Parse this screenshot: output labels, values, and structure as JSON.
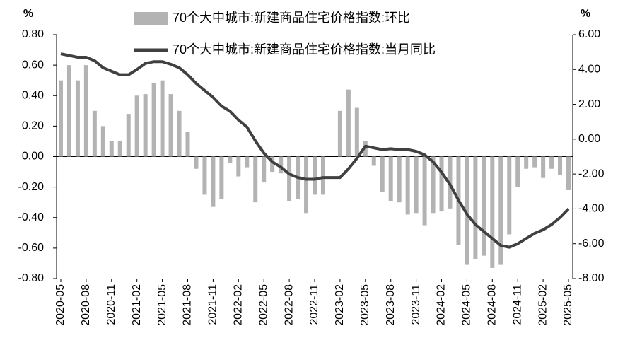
{
  "chart_data": {
    "type": "bar_line",
    "y_label": "%",
    "y2_label": "%",
    "categories": [
      "2020-05",
      null,
      null,
      "2020-08",
      null,
      null,
      "2020-11",
      null,
      null,
      "2021-02",
      null,
      null,
      "2021-05",
      null,
      null,
      "2021-08",
      null,
      null,
      "2021-11",
      null,
      null,
      "2022-02",
      null,
      null,
      "2022-05",
      null,
      null,
      "2022-08",
      null,
      null,
      "2022-11",
      null,
      null,
      "2023-02",
      null,
      null,
      "2023-05",
      null,
      null,
      "2023-08",
      null,
      null,
      "2023-11",
      null,
      null,
      "2024-02",
      null,
      null,
      "2024-05",
      null,
      null,
      "2024-08",
      null,
      null,
      "2024-11",
      null,
      null,
      "2025-02",
      null,
      null,
      "2025-05"
    ],
    "series": [
      {
        "name": "70个大中城市:新建商品住宅价格指数:环比",
        "type": "bar",
        "color": "#b3b3b3",
        "values": [
          0.5,
          0.6,
          0.5,
          0.6,
          0.3,
          0.2,
          0.1,
          0.1,
          0.28,
          0.4,
          0.41,
          0.48,
          0.5,
          0.41,
          0.3,
          0.16,
          -0.08,
          -0.25,
          -0.33,
          -0.28,
          -0.04,
          -0.13,
          -0.07,
          -0.3,
          -0.17,
          -0.1,
          -0.11,
          -0.29,
          -0.28,
          -0.37,
          -0.25,
          -0.25,
          0,
          0.3,
          0.44,
          0.32,
          0.1,
          -0.06,
          -0.23,
          -0.29,
          -0.3,
          -0.38,
          -0.37,
          -0.45,
          -0.37,
          -0.36,
          -0.34,
          -0.58,
          -0.71,
          -0.67,
          -0.65,
          -0.73,
          -0.71,
          -0.51,
          -0.2,
          -0.08,
          -0.07,
          -0.14,
          -0.08,
          -0.12,
          -0.22
        ]
      },
      {
        "name": "70个大中城市:新建商品住宅价格指数:当月同比",
        "type": "line",
        "axis": "y2",
        "color": "#404040",
        "values": [
          4.9,
          4.8,
          4.7,
          4.7,
          4.5,
          4.1,
          3.9,
          3.7,
          3.7,
          4.0,
          4.35,
          4.45,
          4.45,
          4.3,
          4.1,
          3.7,
          3.2,
          2.8,
          2.4,
          1.9,
          1.6,
          1.1,
          0.7,
          -0.1,
          -0.8,
          -1.3,
          -1.6,
          -2.0,
          -2.2,
          -2.3,
          -2.3,
          -2.2,
          -2.2,
          -2.2,
          -1.7,
          -1.1,
          -0.4,
          -0.5,
          -0.6,
          -0.55,
          -0.6,
          -0.6,
          -0.7,
          -0.9,
          -1.3,
          -1.9,
          -2.6,
          -3.5,
          -4.3,
          -4.9,
          -5.3,
          -5.7,
          -6.1,
          -6.2,
          -6.0,
          -5.7,
          -5.4,
          -5.2,
          -4.9,
          -4.5,
          -4.0
        ]
      }
    ],
    "ylim": [
      -0.8,
      0.8
    ],
    "yticks": [
      {
        "value": 0.8,
        "label": "0.80"
      },
      {
        "value": 0.6,
        "label": "0.60"
      },
      {
        "value": 0.4,
        "label": "0.40"
      },
      {
        "value": 0.2,
        "label": "0.20"
      },
      {
        "value": 0,
        "label": "0.00"
      },
      {
        "value": -0.2,
        "label": "-0.20"
      },
      {
        "value": -0.4,
        "label": "-0.40"
      },
      {
        "value": -0.6,
        "label": "-0.60"
      },
      {
        "value": -0.8,
        "label": "-0.80"
      }
    ],
    "y2lim": [
      -8,
      6
    ],
    "y2ticks": [
      {
        "value": 6,
        "label": "6.00"
      },
      {
        "value": 4,
        "label": "4.00"
      },
      {
        "value": 2,
        "label": "2.00"
      },
      {
        "value": 0,
        "label": "0.00"
      },
      {
        "value": -2,
        "label": "-2.00"
      },
      {
        "value": -4,
        "label": "-4.00"
      },
      {
        "value": -6,
        "label": "-6.00"
      },
      {
        "value": -8,
        "label": "-8.00"
      }
    ],
    "legend": "top"
  }
}
